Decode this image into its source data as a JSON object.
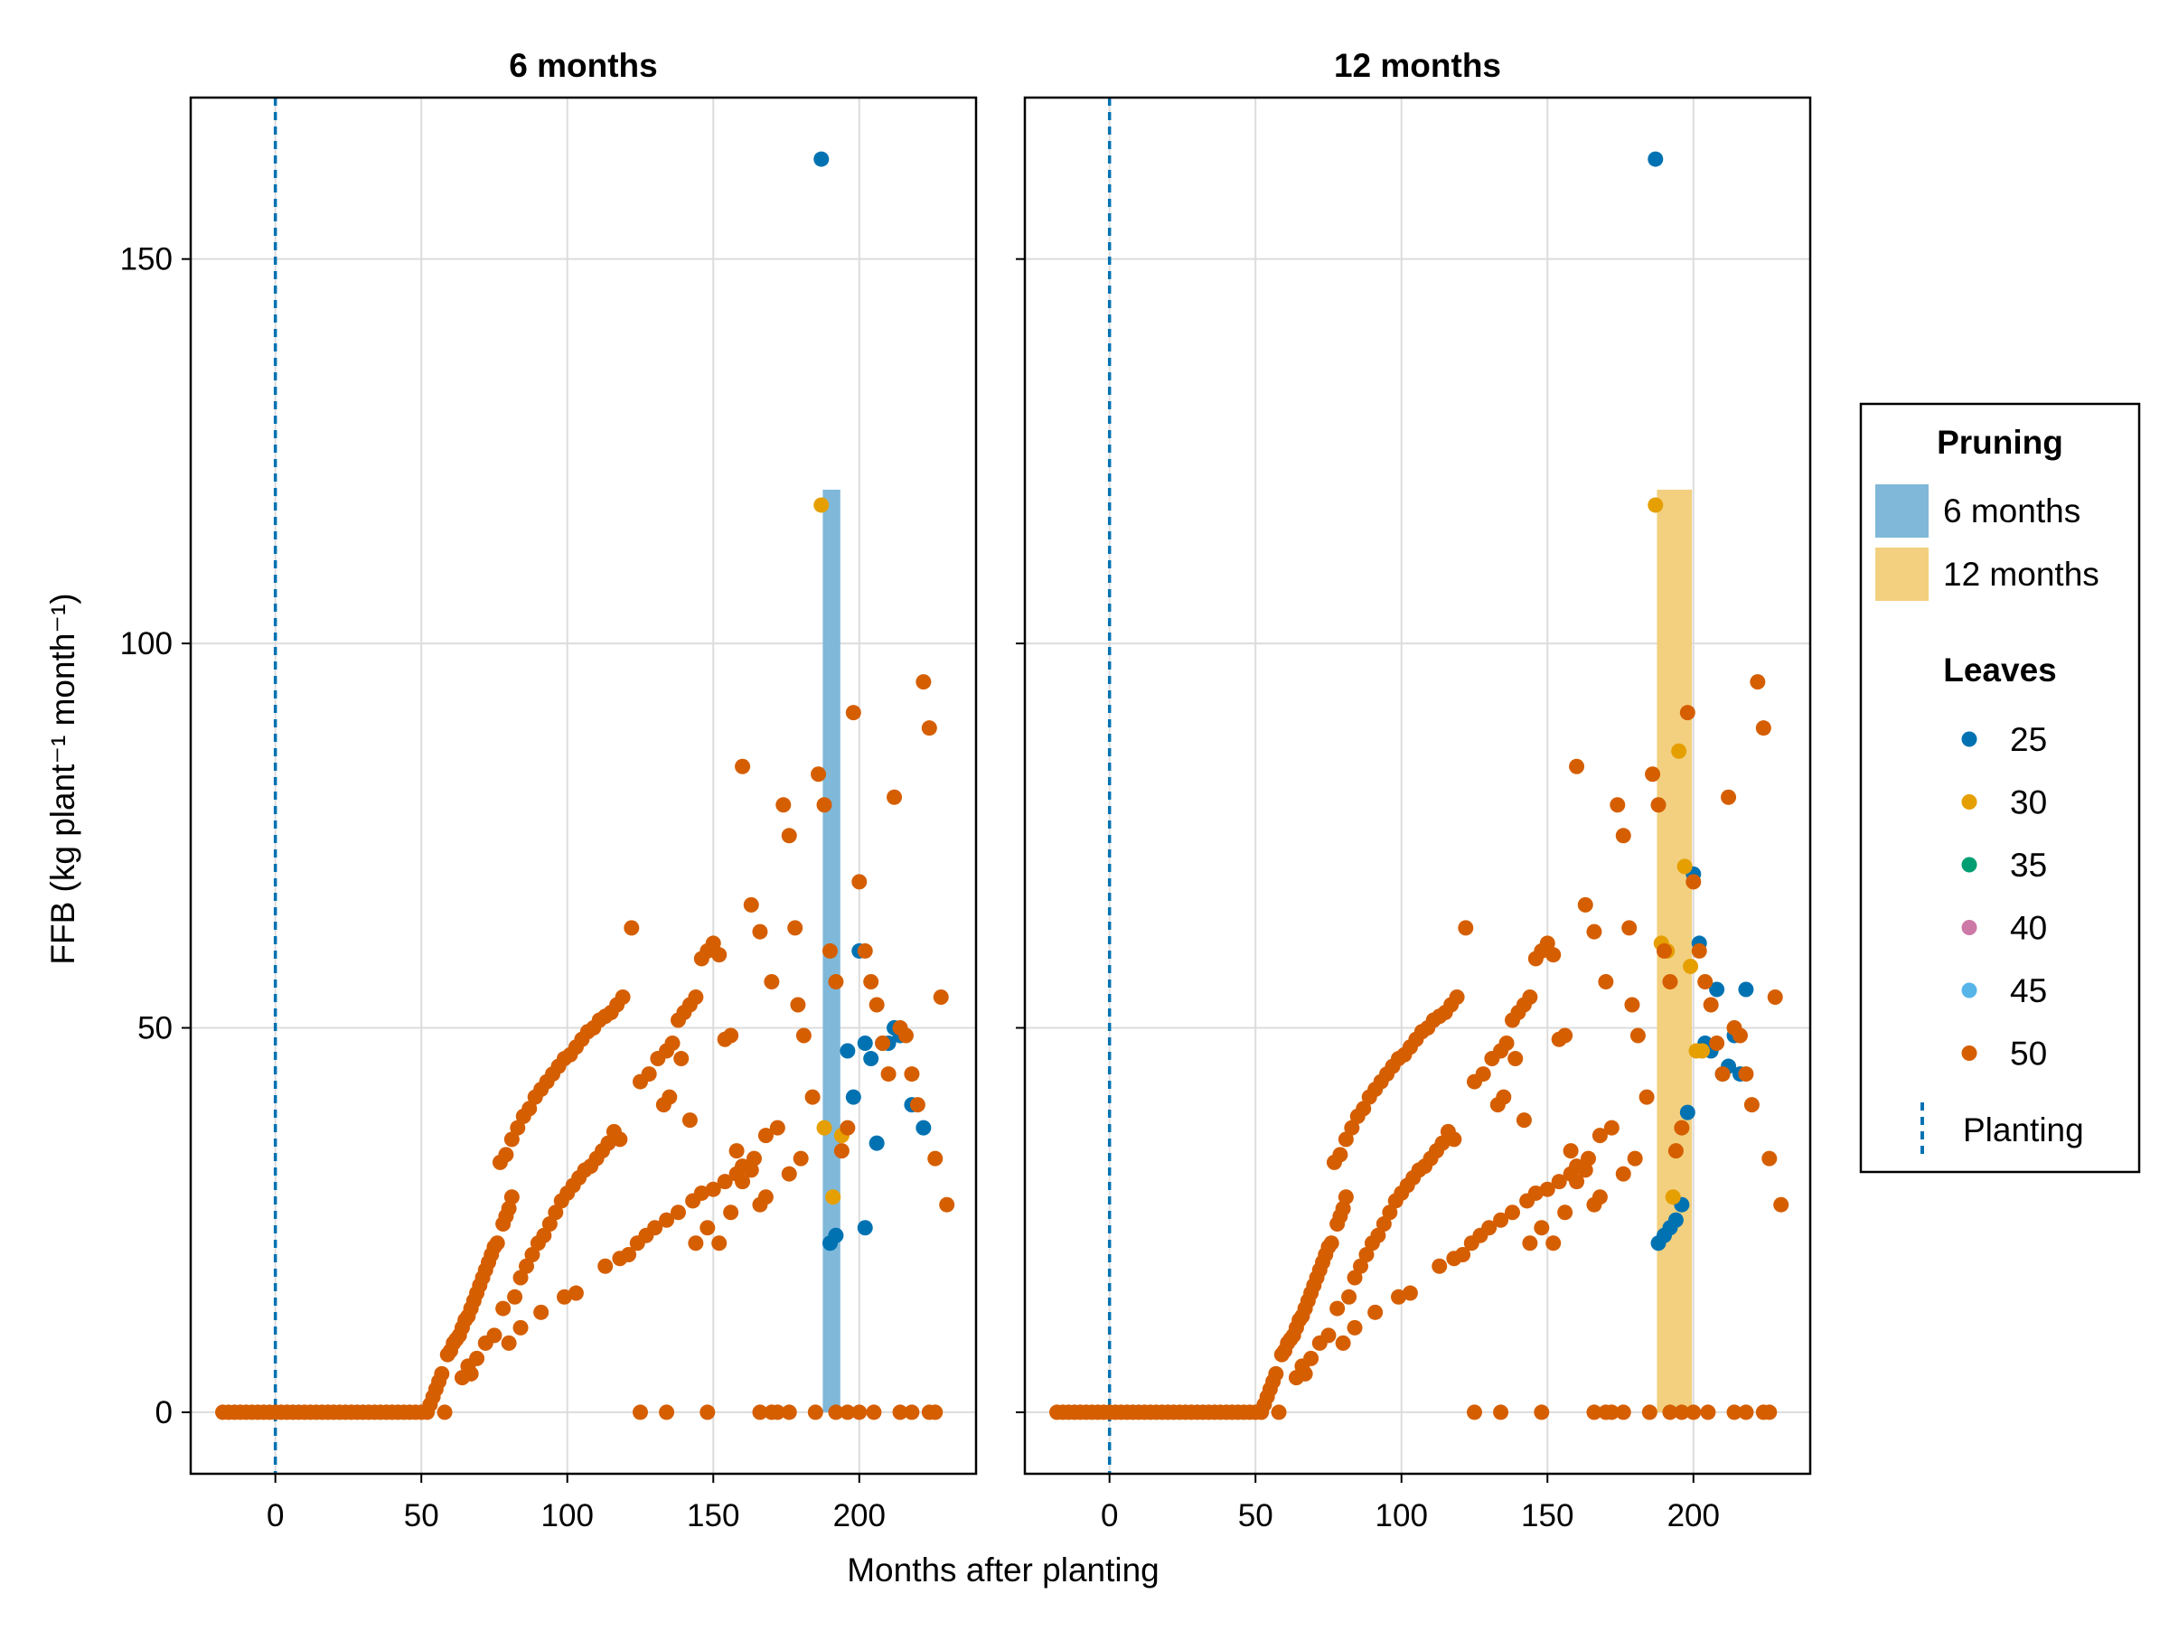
{
  "chart_data": {
    "type": "scatter",
    "xlabel": "Months after planting",
    "ylabel": "FFB (kg plant⁻¹ month⁻¹)",
    "xlim": [
      -29,
      240
    ],
    "ylim": [
      -8,
      171
    ],
    "xticks": [
      0,
      50,
      100,
      150,
      200
    ],
    "yticks": [
      0,
      50,
      100,
      150
    ],
    "grid": true,
    "legend_placement": "right",
    "colors": {
      "25": "#0072b2",
      "30": "#e69f00",
      "35": "#009e73",
      "40": "#cc79a7",
      "45": "#56b4e9",
      "50": "#d55e00",
      "planting_line": "#0072b2",
      "band_6": "#7fb8d9",
      "band_12": "#f3d07f"
    },
    "panels": [
      {
        "title": "6 months",
        "band": {
          "x0": 187.5,
          "x1": 193.5,
          "y0": 0,
          "y1": 120,
          "series": "6 months"
        }
      },
      {
        "title": "12 months",
        "band": {
          "x0": 187.5,
          "x1": 199.5,
          "y0": 0,
          "y1": 120,
          "series": "12 months"
        }
      }
    ],
    "planting_x": 0,
    "legend": {
      "pruning_title": "Pruning",
      "pruning": [
        {
          "label": "6 months",
          "color": "#7fb8d9"
        },
        {
          "label": "12 months",
          "color": "#f3d07f"
        }
      ],
      "leaves_title": "Leaves",
      "leaves": [
        {
          "label": "25",
          "color": "#0072b2"
        },
        {
          "label": "30",
          "color": "#e69f00"
        },
        {
          "label": "35",
          "color": "#009e73"
        },
        {
          "label": "40",
          "color": "#cc79a7"
        },
        {
          "label": "45",
          "color": "#56b4e9"
        },
        {
          "label": "50",
          "color": "#d55e00"
        }
      ],
      "planting_label": "Planting"
    },
    "base_series_50": [
      [
        -18,
        0
      ],
      [
        -16,
        0
      ],
      [
        -14,
        0
      ],
      [
        -12,
        0
      ],
      [
        -10,
        0
      ],
      [
        -8,
        0
      ],
      [
        -6,
        0
      ],
      [
        -4,
        0
      ],
      [
        -2,
        0
      ],
      [
        0,
        0
      ],
      [
        2,
        0
      ],
      [
        4,
        0
      ],
      [
        6,
        0
      ],
      [
        8,
        0
      ],
      [
        10,
        0
      ],
      [
        12,
        0
      ],
      [
        14,
        0
      ],
      [
        16,
        0
      ],
      [
        18,
        0
      ],
      [
        20,
        0
      ],
      [
        22,
        0
      ],
      [
        24,
        0
      ],
      [
        26,
        0
      ],
      [
        28,
        0
      ],
      [
        30,
        0
      ],
      [
        32,
        0
      ],
      [
        34,
        0
      ],
      [
        36,
        0
      ],
      [
        38,
        0
      ],
      [
        40,
        0
      ],
      [
        42,
        0
      ],
      [
        44,
        0
      ],
      [
        46,
        0
      ],
      [
        48,
        0
      ],
      [
        50,
        0
      ],
      [
        52,
        0
      ],
      [
        53,
        1
      ],
      [
        54,
        2
      ],
      [
        55,
        3
      ],
      [
        56,
        4
      ],
      [
        57,
        5
      ],
      [
        58,
        0
      ],
      [
        59,
        7.5
      ],
      [
        60,
        8
      ],
      [
        61,
        9
      ],
      [
        62,
        9.5
      ],
      [
        63,
        10
      ],
      [
        64,
        11
      ],
      [
        65,
        12
      ],
      [
        66,
        12.5
      ],
      [
        67,
        13.5
      ],
      [
        68,
        14.5
      ],
      [
        69,
        15.5
      ],
      [
        70,
        16.5
      ],
      [
        71,
        17.5
      ],
      [
        72,
        18.5
      ],
      [
        73,
        19.5
      ],
      [
        74,
        20.5
      ],
      [
        75,
        21.5
      ],
      [
        76,
        22
      ],
      [
        78,
        24.5
      ],
      [
        79,
        25.5
      ],
      [
        80,
        26.5
      ],
      [
        81,
        28
      ],
      [
        64,
        4.5
      ],
      [
        66,
        6
      ],
      [
        67,
        5
      ],
      [
        69,
        7
      ],
      [
        72,
        9
      ],
      [
        75,
        10
      ],
      [
        78,
        13.5
      ],
      [
        82,
        15
      ],
      [
        84,
        17.5
      ],
      [
        86,
        19
      ],
      [
        88,
        20.5
      ],
      [
        90,
        22
      ],
      [
        92,
        23
      ],
      [
        94,
        24.5
      ],
      [
        96,
        26
      ],
      [
        98,
        27.5
      ],
      [
        100,
        28.5
      ],
      [
        102,
        29.5
      ],
      [
        104,
        30.5
      ],
      [
        106,
        31.5
      ],
      [
        108,
        32
      ],
      [
        110,
        33
      ],
      [
        112,
        34
      ],
      [
        114,
        35
      ],
      [
        77,
        32.5
      ],
      [
        79,
        33.5
      ],
      [
        81,
        35.5
      ],
      [
        83,
        37
      ],
      [
        85,
        38.5
      ],
      [
        87,
        39.5
      ],
      [
        89,
        41
      ],
      [
        91,
        42
      ],
      [
        93,
        43
      ],
      [
        95,
        44
      ],
      [
        97,
        45
      ],
      [
        99,
        46
      ],
      [
        101,
        46.5
      ],
      [
        103,
        47.5
      ],
      [
        105,
        48.5
      ],
      [
        107,
        49.5
      ],
      [
        109,
        50
      ],
      [
        111,
        51
      ],
      [
        113,
        51.5
      ],
      [
        115,
        52
      ],
      [
        117,
        53
      ],
      [
        119,
        54
      ],
      [
        80,
        9
      ],
      [
        84,
        11
      ],
      [
        91,
        13
      ],
      [
        99,
        15
      ],
      [
        103,
        15.5
      ],
      [
        113,
        19
      ],
      [
        118,
        20
      ],
      [
        121,
        20.5
      ],
      [
        124,
        22
      ],
      [
        127,
        23
      ],
      [
        130,
        24
      ],
      [
        134,
        25
      ],
      [
        138,
        26
      ],
      [
        143,
        27.5
      ],
      [
        146,
        28.5
      ],
      [
        150,
        29
      ],
      [
        154,
        30
      ],
      [
        158,
        31
      ],
      [
        160,
        32
      ],
      [
        164,
        33
      ],
      [
        168,
        36
      ],
      [
        172,
        37
      ],
      [
        176,
        31
      ],
      [
        180,
        33
      ],
      [
        116,
        36.5
      ],
      [
        118,
        35.5
      ],
      [
        122,
        63
      ],
      [
        125,
        43
      ],
      [
        128,
        44
      ],
      [
        131,
        46
      ],
      [
        134,
        47
      ],
      [
        136,
        48
      ],
      [
        138,
        51
      ],
      [
        140,
        52
      ],
      [
        142,
        53
      ],
      [
        144,
        54
      ],
      [
        146,
        59
      ],
      [
        148,
        60
      ],
      [
        150,
        61
      ],
      [
        152,
        59.5
      ],
      [
        154,
        48.5
      ],
      [
        156,
        49
      ],
      [
        160,
        84
      ],
      [
        163,
        66
      ],
      [
        166,
        62.5
      ],
      [
        170,
        56
      ],
      [
        133,
        40
      ],
      [
        135,
        41
      ],
      [
        139,
        46
      ],
      [
        142,
        38
      ],
      [
        144,
        22
      ],
      [
        148,
        24
      ],
      [
        152,
        22
      ],
      [
        156,
        26
      ],
      [
        158,
        34
      ],
      [
        160,
        30
      ],
      [
        163,
        31.5
      ],
      [
        166,
        27
      ],
      [
        168,
        28
      ],
      [
        174,
        79
      ],
      [
        176,
        75
      ],
      [
        178,
        63
      ],
      [
        179,
        53
      ],
      [
        181,
        49
      ],
      [
        184,
        41
      ],
      [
        186,
        83
      ],
      [
        188,
        79
      ],
      [
        190,
        60
      ],
      [
        192,
        56
      ],
      [
        194,
        34
      ],
      [
        196,
        37
      ],
      [
        198,
        91
      ],
      [
        200,
        69
      ],
      [
        202,
        60
      ],
      [
        204,
        56
      ],
      [
        206,
        53
      ],
      [
        208,
        48
      ],
      [
        210,
        44
      ],
      [
        212,
        80
      ],
      [
        214,
        50
      ],
      [
        216,
        49
      ],
      [
        218,
        44
      ],
      [
        220,
        40
      ],
      [
        222,
        95
      ],
      [
        224,
        89
      ],
      [
        226,
        33
      ],
      [
        228,
        54
      ],
      [
        230,
        27
      ],
      [
        125,
        0
      ],
      [
        134,
        0
      ],
      [
        148,
        0
      ],
      [
        166,
        0
      ],
      [
        170,
        0
      ],
      [
        172,
        0
      ],
      [
        176,
        0
      ],
      [
        185,
        0
      ],
      [
        192,
        0
      ],
      [
        196,
        0
      ],
      [
        200,
        0
      ],
      [
        205,
        0
      ],
      [
        214,
        0
      ],
      [
        218,
        0
      ],
      [
        224,
        0
      ],
      [
        226,
        0
      ]
    ],
    "panel1_extra": [
      {
        "leaves": "25",
        "points": [
          [
            187,
            163
          ],
          [
            190,
            22
          ],
          [
            192,
            23
          ],
          [
            196,
            47
          ],
          [
            198,
            41
          ],
          [
            200,
            60
          ],
          [
            202,
            48
          ],
          [
            204,
            46
          ],
          [
            208,
            48
          ],
          [
            212,
            50
          ],
          [
            214,
            49
          ],
          [
            218,
            40
          ],
          [
            222,
            37
          ],
          [
            206,
            35
          ],
          [
            210,
            48
          ],
          [
            202,
            24
          ]
        ]
      },
      {
        "leaves": "30",
        "points": [
          [
            187,
            118
          ],
          [
            188,
            37
          ],
          [
            191,
            28
          ],
          [
            194,
            36
          ]
        ]
      }
    ],
    "panel2_extra": [
      {
        "leaves": "25",
        "points": [
          [
            187,
            163
          ],
          [
            188,
            22
          ],
          [
            190,
            23
          ],
          [
            192,
            24
          ],
          [
            194,
            25
          ],
          [
            196,
            27
          ],
          [
            198,
            39
          ],
          [
            200,
            70
          ],
          [
            202,
            61
          ],
          [
            204,
            48
          ],
          [
            206,
            47
          ],
          [
            208,
            55
          ],
          [
            210,
            44
          ],
          [
            212,
            45
          ],
          [
            214,
            49
          ],
          [
            216,
            44
          ],
          [
            218,
            55
          ]
        ]
      },
      {
        "leaves": "30",
        "points": [
          [
            187,
            118
          ],
          [
            189,
            61
          ],
          [
            191,
            60
          ],
          [
            193,
            28
          ],
          [
            195,
            86
          ],
          [
            197,
            71
          ],
          [
            199,
            58
          ],
          [
            201,
            47
          ],
          [
            203,
            47
          ]
        ]
      }
    ]
  }
}
